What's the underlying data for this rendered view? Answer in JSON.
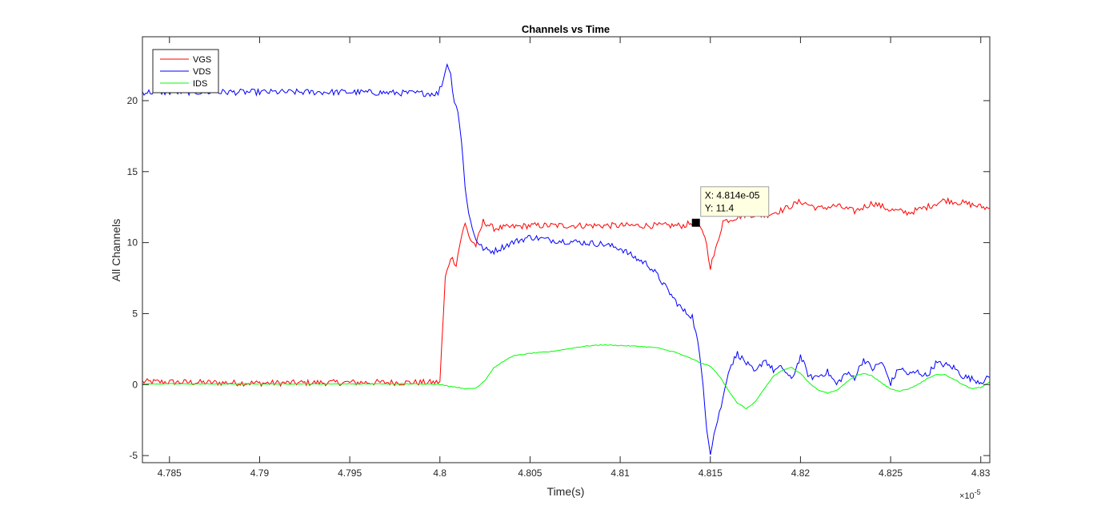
{
  "chart_data": {
    "type": "line",
    "title": "Channels vs Time",
    "xlabel": "Time(s)",
    "ylabel": "All Channels",
    "x_exponent_label": "×10",
    "x_exponent_power": "-5",
    "xlim": [
      4.7835,
      4.8305
    ],
    "ylim": [
      -5.5,
      24.5
    ],
    "x_ticks": [
      4.785,
      4.79,
      4.795,
      4.8,
      4.805,
      4.81,
      4.815,
      4.82,
      4.825,
      4.83
    ],
    "x_tick_labels": [
      "4.785",
      "4.79",
      "4.795",
      "4.8",
      "4.805",
      "4.81",
      "4.815",
      "4.82",
      "4.825",
      "4.83"
    ],
    "y_ticks": [
      -5,
      0,
      5,
      10,
      15,
      20
    ],
    "y_tick_labels": [
      "-5",
      "0",
      "5",
      "10",
      "15",
      "20"
    ],
    "grid": false,
    "legend_position": "top-left",
    "series": [
      {
        "name": "VGS",
        "color": "#ff0000",
        "x": [
          4.7835,
          4.79,
          4.795,
          4.7998,
          4.8,
          4.8003,
          4.8006,
          4.8009,
          4.8012,
          4.8014,
          4.8017,
          4.802,
          4.8024,
          4.803,
          4.805,
          4.81,
          4.8135,
          4.814,
          4.8143,
          4.8147,
          4.815,
          4.8153,
          4.8157,
          4.816,
          4.8165,
          4.817,
          4.818,
          4.819,
          4.82,
          4.821,
          4.822,
          4.823,
          4.824,
          4.825,
          4.826,
          4.827,
          4.828,
          4.829,
          4.8305
        ],
        "y": [
          0.2,
          0.1,
          0.15,
          0.15,
          0.2,
          7.5,
          9.0,
          8.5,
          10.5,
          11.3,
          10.2,
          9.8,
          11.5,
          11.0,
          11.2,
          11.2,
          11.2,
          11.4,
          11.2,
          10.5,
          8.3,
          9.5,
          11.5,
          11.6,
          11.8,
          12.0,
          11.9,
          12.3,
          12.9,
          12.4,
          12.6,
          12.2,
          12.8,
          12.3,
          12.1,
          12.5,
          13.0,
          12.8,
          12.4
        ]
      },
      {
        "name": "VDS",
        "color": "#0000ff",
        "x": [
          4.7835,
          4.79,
          4.795,
          4.7999,
          4.8002,
          4.8004,
          4.8006,
          4.8008,
          4.801,
          4.8012,
          4.8014,
          4.8016,
          4.8018,
          4.802,
          4.8022,
          4.8025,
          4.803,
          4.804,
          4.805,
          4.806,
          4.807,
          4.808,
          4.809,
          4.81,
          4.8105,
          4.811,
          4.8115,
          4.812,
          4.8125,
          4.813,
          4.8135,
          4.814,
          4.8143,
          4.8146,
          4.8148,
          4.815,
          4.8152,
          4.8154,
          4.8157,
          4.816,
          4.8165,
          4.817,
          4.8175,
          4.818,
          4.8185,
          4.819,
          4.8195,
          4.82,
          4.8205,
          4.821,
          4.8215,
          4.822,
          4.8225,
          4.823,
          4.8235,
          4.824,
          4.8245,
          4.825,
          4.8255,
          4.826,
          4.8265,
          4.827,
          4.8275,
          4.828,
          4.8285,
          4.829,
          4.8295,
          4.83,
          4.8305
        ],
        "y": [
          20.6,
          20.6,
          20.6,
          20.5,
          21.5,
          22.7,
          21.8,
          20.0,
          19.3,
          17.0,
          14.0,
          12.0,
          11.0,
          10.3,
          9.8,
          9.5,
          9.4,
          10.0,
          10.4,
          10.2,
          10.1,
          10.0,
          9.9,
          9.6,
          9.2,
          8.8,
          8.5,
          7.8,
          6.9,
          6.0,
          5.2,
          4.8,
          3.0,
          0.0,
          -3.0,
          -4.8,
          -3.5,
          -2.5,
          -1.0,
          1.0,
          2.2,
          1.5,
          0.8,
          1.8,
          1.0,
          1.2,
          0.3,
          2.0,
          0.5,
          0.6,
          0.9,
          0.0,
          0.8,
          0.5,
          1.8,
          1.1,
          1.6,
          0.1,
          1.2,
          0.7,
          0.9,
          0.6,
          1.5,
          1.4,
          1.2,
          0.6,
          0.4,
          0.2,
          0.5
        ]
      },
      {
        "name": "IDS",
        "color": "#00ff00",
        "x": [
          4.7835,
          4.79,
          4.795,
          4.7995,
          4.8,
          4.8015,
          4.802,
          4.8025,
          4.803,
          4.804,
          4.805,
          4.806,
          4.807,
          4.808,
          4.809,
          4.81,
          4.811,
          4.812,
          4.813,
          4.814,
          4.8145,
          4.815,
          4.8155,
          4.816,
          4.8165,
          4.817,
          4.8175,
          4.818,
          4.8185,
          4.819,
          4.8195,
          4.82,
          4.8205,
          4.821,
          4.8215,
          4.822,
          4.8225,
          4.823,
          4.8235,
          4.824,
          4.8245,
          4.825,
          4.8255,
          4.826,
          4.8265,
          4.827,
          4.8275,
          4.828,
          4.8285,
          4.829,
          4.8295,
          4.83,
          4.8305
        ],
        "y": [
          0.05,
          0.05,
          0.05,
          0.05,
          0.0,
          -0.3,
          -0.25,
          0.3,
          1.2,
          2.0,
          2.2,
          2.3,
          2.5,
          2.7,
          2.8,
          2.75,
          2.7,
          2.6,
          2.3,
          1.8,
          1.5,
          1.3,
          0.6,
          -0.4,
          -1.3,
          -1.7,
          -1.2,
          -0.3,
          0.6,
          1.0,
          1.2,
          0.8,
          0.1,
          -0.4,
          -0.6,
          -0.4,
          0.1,
          0.6,
          0.8,
          0.6,
          0.1,
          -0.3,
          -0.45,
          -0.3,
          0.0,
          0.4,
          0.7,
          0.7,
          0.4,
          0.0,
          -0.3,
          -0.2,
          0.2
        ]
      }
    ],
    "datatip": {
      "x_label": "X: 4.814e-05",
      "y_label": "Y: 11.4",
      "x": 4.8142,
      "y": 11.4
    }
  }
}
